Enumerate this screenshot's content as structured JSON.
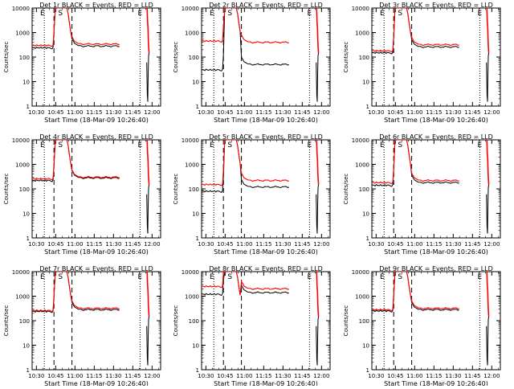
{
  "chart_data": {
    "type": "line",
    "layout": "3x3 grid of log-scale time-series panels",
    "common": {
      "title_suffix": "BLACK = Events, RED = LLD",
      "xlabel": "Start Time (18-Mar-09 10:26:40)",
      "ylabel": "Counts/sec",
      "x_ticks": [
        "10:30",
        "10:45",
        "11:00",
        "11:15",
        "11:30",
        "11:45",
        "12:00"
      ],
      "x_range_min": [
        0,
        100
      ],
      "y_scale": "log",
      "y_ticks": [
        "1",
        "10",
        "100",
        "1000",
        "10000"
      ],
      "ylim": [
        1,
        10000
      ],
      "legend": "in title",
      "grid": false,
      "series_colors": {
        "Events": "#000000",
        "LLD": "#ff0000"
      },
      "dotted_vertical_lines_min": [
        9.5,
        84
      ],
      "dashed_vertical_lines_min": [
        17,
        31
      ],
      "markers": [
        {
          "text": "S",
          "x_min": 22
        },
        {
          "text": "E",
          "x_min": 8
        },
        {
          "text": "E",
          "x_min": 84
        }
      ]
    },
    "panels": [
      {
        "title": "Det 1r",
        "events_base": 240,
        "lld_base": 300,
        "events_after": 280,
        "lld_after": 340
      },
      {
        "title": "Det 2r",
        "events_base": 30,
        "lld_base": 450,
        "events_after": 50,
        "lld_after": 400
      },
      {
        "title": "Det 3r",
        "events_base": 150,
        "lld_base": 180,
        "events_after": 260,
        "lld_after": 320
      },
      {
        "title": "Det 4r",
        "events_base": 220,
        "lld_base": 260,
        "events_after": 280,
        "lld_after": 300
      },
      {
        "title": "Det 5r",
        "events_base": 80,
        "lld_base": 150,
        "events_after": 120,
        "lld_after": 220
      },
      {
        "title": "Det 6r",
        "events_base": 140,
        "lld_base": 180,
        "events_after": 180,
        "lld_after": 220
      },
      {
        "title": "Det 7r",
        "events_base": 240,
        "lld_base": 260,
        "events_after": 280,
        "lld_after": 320
      },
      {
        "title": "Det 8r",
        "events_base": 1200,
        "lld_base": 2500,
        "events_after": 1400,
        "lld_after": 2000
      },
      {
        "title": "Det 9r",
        "events_base": 250,
        "lld_base": 280,
        "events_after": 280,
        "lld_after": 320
      }
    ]
  }
}
